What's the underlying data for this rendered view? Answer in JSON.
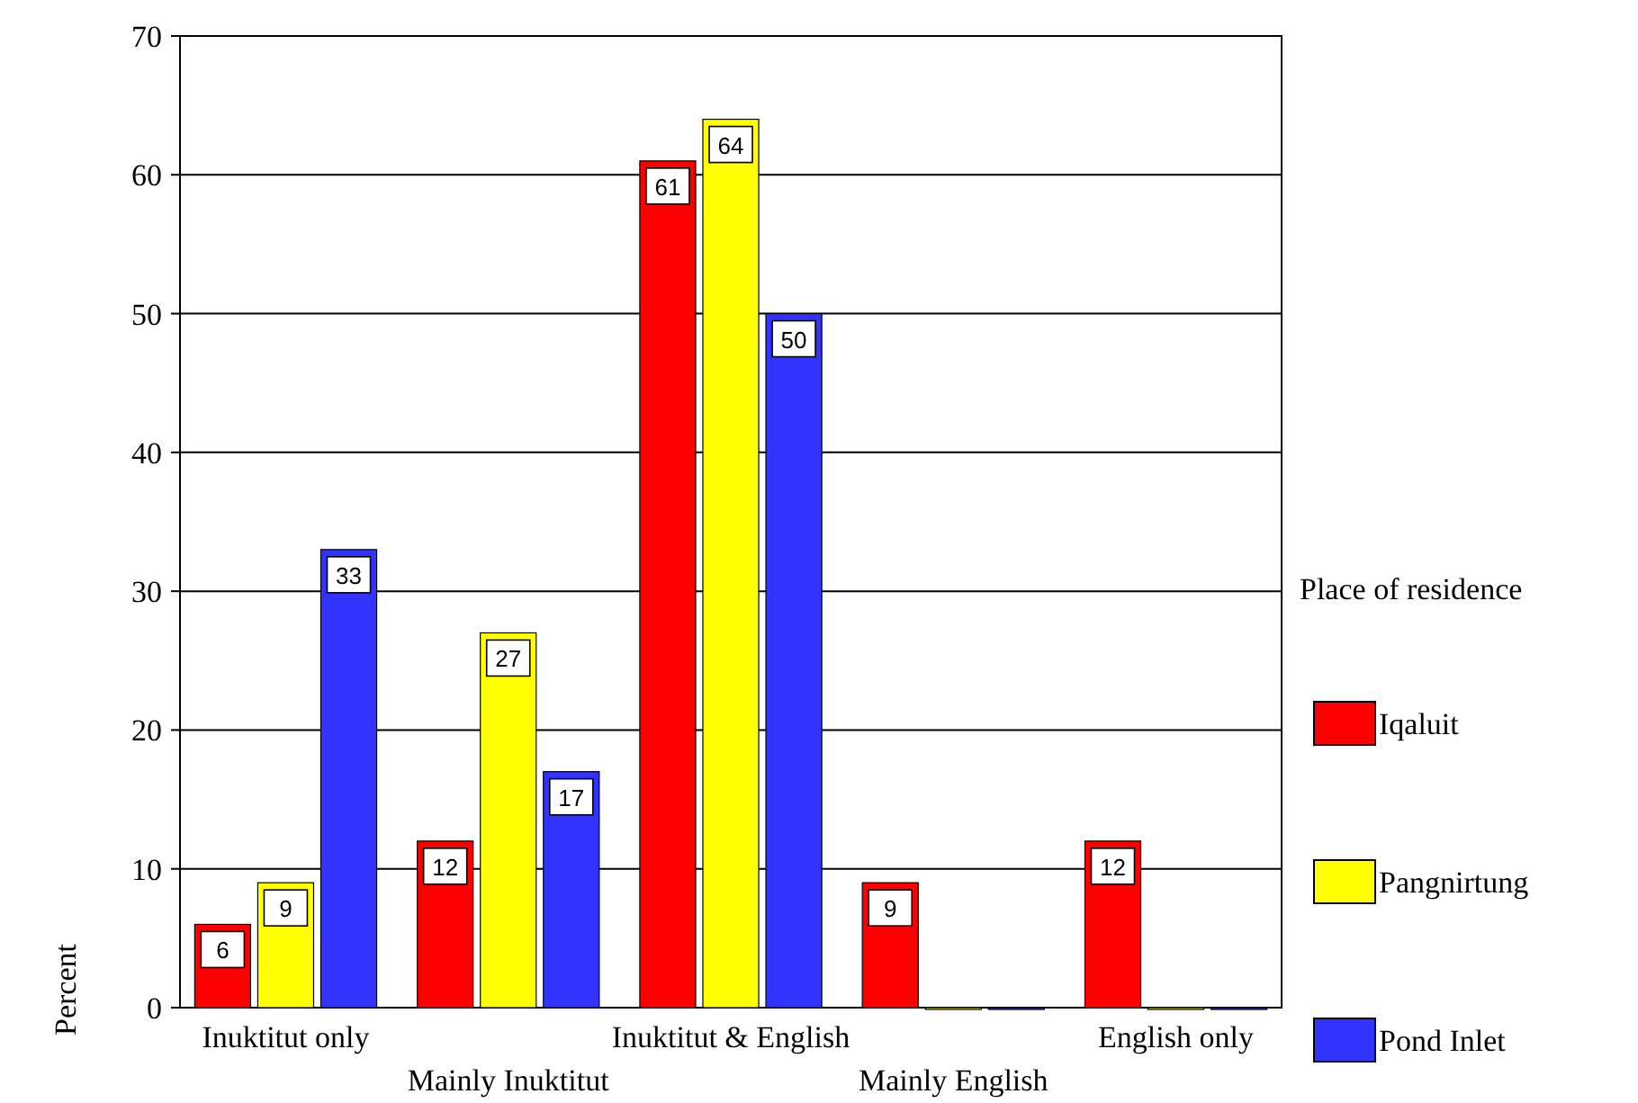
{
  "chart_data": {
    "type": "bar",
    "ylabel": "Percent",
    "legend_title": "Place of residence",
    "categories": [
      "Inuktitut only",
      "Mainly Inuktitut",
      "Inuktitut & English",
      "Mainly English",
      "English only"
    ],
    "series": [
      {
        "name": "Iqaluit",
        "color": "#ff0000",
        "values": [
          6,
          12,
          61,
          9,
          12
        ],
        "value_labels": [
          "6",
          "12",
          "61",
          "9",
          "12"
        ]
      },
      {
        "name": "Pangnirtung",
        "color": "#ffff00",
        "values": [
          9,
          27,
          64,
          0,
          0
        ],
        "value_labels": [
          "9",
          "27",
          "64",
          null,
          null
        ]
      },
      {
        "name": "Pond Inlet",
        "color": "#3333ff",
        "values": [
          33,
          17,
          50,
          0,
          0
        ],
        "value_labels": [
          "33",
          "17",
          "50",
          null,
          null
        ]
      }
    ],
    "ylim": [
      0,
      70
    ],
    "yticks": [
      0,
      10,
      20,
      30,
      40,
      50,
      60,
      70
    ],
    "grid": "y",
    "legend": "right"
  }
}
